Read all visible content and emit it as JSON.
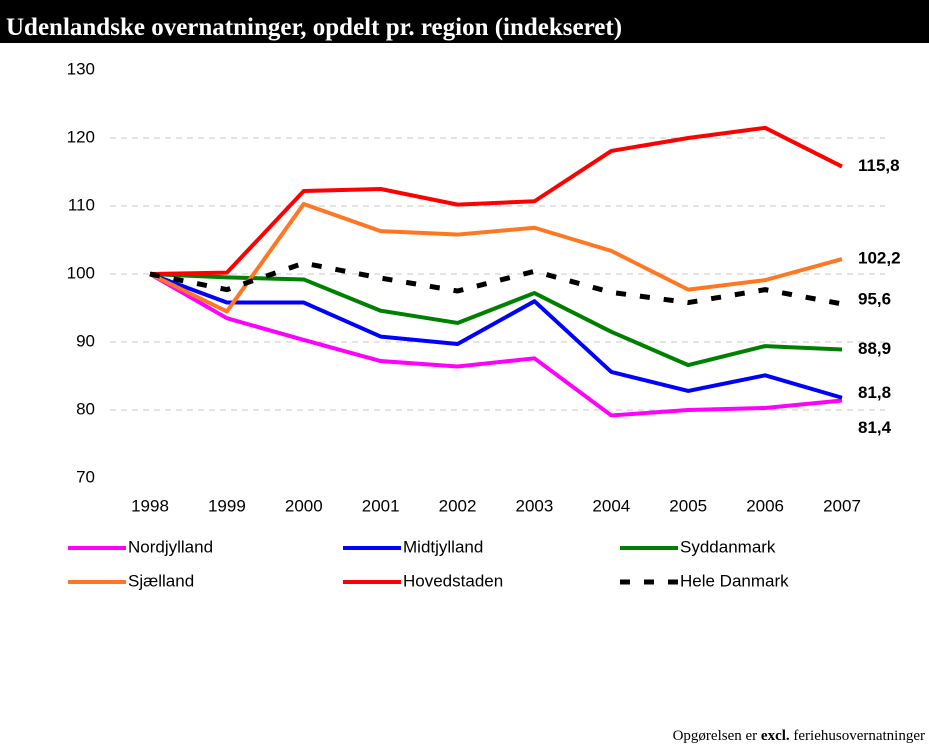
{
  "chart_data": {
    "type": "line",
    "title": "Udenlandske overnatninger, opdelt pr. region (indekseret)",
    "x": [
      "1998",
      "1999",
      "2000",
      "2001",
      "2002",
      "2003",
      "2004",
      "2005",
      "2006",
      "2007"
    ],
    "ylim": [
      70,
      130
    ],
    "yticks": [
      70,
      80,
      90,
      100,
      110,
      120,
      130
    ],
    "grid": true,
    "legend": "bottom",
    "series": [
      {
        "name": "Nordjylland",
        "color": "#ff00ff",
        "values": [
          100,
          93.5,
          90.3,
          87.2,
          86.4,
          87.6,
          79.2,
          80.0,
          80.3,
          81.4
        ],
        "value_labels": [
          null,
          null,
          null,
          null,
          null,
          null,
          null,
          null,
          null,
          "81,4"
        ]
      },
      {
        "name": "Midtjylland",
        "color": "#0000ff",
        "values": [
          100,
          95.8,
          95.8,
          90.8,
          89.7,
          96.0,
          85.6,
          82.8,
          85.1,
          81.8
        ],
        "value_labels": [
          null,
          null,
          null,
          null,
          null,
          null,
          null,
          null,
          null,
          "81,8"
        ]
      },
      {
        "name": "Syddanmark",
        "color": "#008000",
        "values": [
          100,
          99.5,
          99.2,
          94.6,
          92.8,
          97.2,
          91.5,
          86.6,
          89.4,
          88.9
        ],
        "value_labels": [
          null,
          null,
          null,
          null,
          null,
          null,
          null,
          null,
          null,
          "88,9"
        ]
      },
      {
        "name": "Sjælland",
        "color": "#ff7722",
        "values": [
          100,
          94.5,
          110.3,
          106.3,
          105.8,
          106.8,
          103.4,
          97.7,
          99.1,
          102.2
        ],
        "value_labels": [
          null,
          null,
          null,
          null,
          null,
          null,
          null,
          null,
          null,
          "102,2"
        ]
      },
      {
        "name": "Hovedstaden",
        "color": "#ff0000",
        "values": [
          100,
          100.2,
          112.2,
          112.5,
          110.2,
          110.7,
          118.1,
          120.0,
          121.5,
          115.8
        ],
        "value_labels": [
          null,
          null,
          null,
          null,
          null,
          null,
          null,
          null,
          null,
          "115,8"
        ]
      },
      {
        "name": "Hele Danmark",
        "color": "#000000",
        "dashed": true,
        "values": [
          100,
          97.7,
          101.6,
          99.4,
          97.5,
          100.4,
          97.3,
          95.8,
          97.7,
          95.6
        ],
        "value_labels": [
          null,
          null,
          null,
          null,
          null,
          null,
          null,
          null,
          null,
          "95,6"
        ]
      }
    ]
  },
  "note": {
    "parts": [
      "Opgørelsen er",
      "excl.",
      "feriehusovernatninger"
    ]
  }
}
